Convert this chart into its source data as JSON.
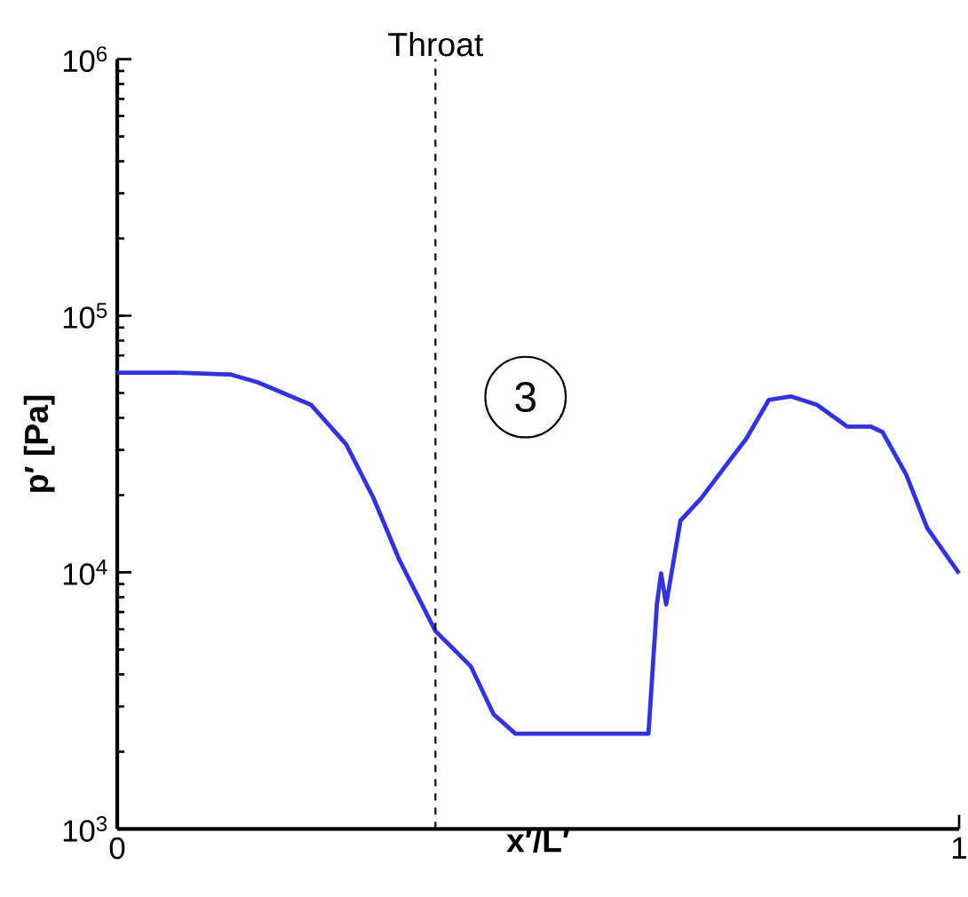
{
  "chart_data": {
    "type": "line",
    "xlabel": "x′/L′",
    "ylabel": "p′ [Pa]",
    "xlim": [
      0,
      1
    ],
    "xticks": [
      0,
      1
    ],
    "ylim": [
      1000,
      1000000
    ],
    "log": "y",
    "yticks": [
      {
        "value": 1000,
        "label": "10$^{3}$"
      },
      {
        "value": 10000,
        "label": "10$^{4}$"
      },
      {
        "value": 100000,
        "label": "10$^{5}$"
      },
      {
        "value": 1000000,
        "label": "10$^{6}$"
      }
    ],
    "grid": false,
    "marker": "none",
    "line_style": "solid",
    "series": [
      {
        "color": "#3333dd",
        "x": [
          0,
          0.072,
          0.135,
          0.167,
          0.23,
          0.272,
          0.304,
          0.335,
          0.378,
          0.42,
          0.447,
          0.473,
          0.631,
          0.641,
          0.646,
          0.652,
          0.669,
          0.694,
          0.726,
          0.747,
          0.774,
          0.8,
          0.831,
          0.867,
          0.895,
          0.909,
          0.937,
          0.962,
          1.0
        ],
        "values": [
          60000,
          60000,
          59000,
          55000,
          45000,
          31500,
          19600,
          11200,
          5900,
          4300,
          2800,
          2350,
          2350,
          7500,
          9900,
          7500,
          15900,
          19500,
          26900,
          33100,
          47000,
          48500,
          45000,
          37000,
          37000,
          35200,
          24100,
          14900,
          9900
        ]
      }
    ],
    "ref_lines": [
      {
        "axis": "x",
        "value": 0.378,
        "label": "Throat",
        "color": "#000000",
        "line_style": "dashed"
      }
    ],
    "annotations": [
      "3"
    ]
  }
}
